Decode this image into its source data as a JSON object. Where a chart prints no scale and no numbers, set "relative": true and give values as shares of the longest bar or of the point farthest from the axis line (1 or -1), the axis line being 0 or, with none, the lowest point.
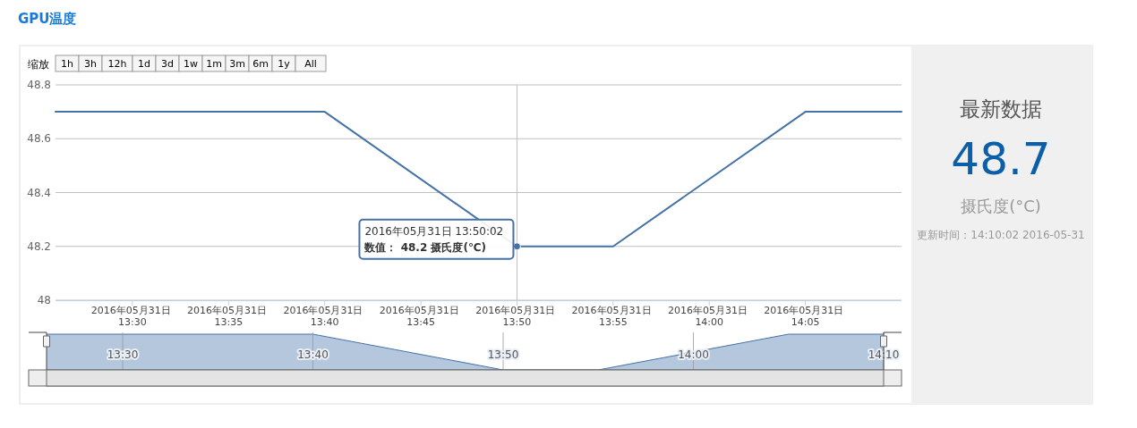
{
  "chart_data": [
    {
      "type": "line",
      "title": "GPU温度",
      "x": [
        "2016-05-31T13:26",
        "2016-05-31T13:40",
        "2016-05-31T13:50",
        "2016-05-31T13:55",
        "2016-05-31T14:05",
        "2016-05-31T14:10"
      ],
      "series": [
        {
          "color": "#4572a7",
          "values": [
            48.7,
            48.7,
            48.2,
            48.2,
            48.7,
            48.7
          ]
        }
      ],
      "xlim": [
        "2016-05-31T13:26",
        "2016-05-31T14:10"
      ],
      "xticks": [
        {
          "value": "2016-05-31T13:30",
          "label": "2016年05月31日 13:30"
        },
        {
          "value": "2016-05-31T13:35",
          "label": "2016年05月31日 13:35"
        },
        {
          "value": "2016-05-31T13:40",
          "label": "2016年05月31日 13:40"
        },
        {
          "value": "2016-05-31T13:45",
          "label": "2016年05月31日 13:45"
        },
        {
          "value": "2016-05-31T13:50",
          "label": "2016年05月31日 13:50"
        },
        {
          "value": "2016-05-31T13:55",
          "label": "2016年05月31日 13:55"
        },
        {
          "value": "2016-05-31T14:00",
          "label": "2016年05月31日 14:00"
        },
        {
          "value": "2016-05-31T14:05",
          "label": "2016年05月31日 14:05"
        }
      ],
      "ylim": [
        48,
        48.8
      ],
      "yticks": [
        48,
        48.2,
        48.4,
        48.6,
        48.8
      ],
      "grid": "y",
      "ref_lines": [
        {
          "axis": "x",
          "value": "2016-05-31T13:50",
          "color": "#c0c0c0"
        }
      ],
      "annotations": [
        "缩放",
        "1h",
        "3h",
        "12h",
        "1d",
        "3d",
        "1w",
        "1m",
        "3m",
        "6m",
        "1y",
        "All",
        {
          "text": "2016年05月31日 13:50:02\n数值： 48.2 摄氏度(℃)",
          "x": "2016-05-31T13:50",
          "y": 48.2
        }
      ]
    },
    {
      "type": "area",
      "relative": true,
      "x": [
        "2016-05-31T13:26",
        "2016-05-31T13:40",
        "2016-05-31T13:50",
        "2016-05-31T13:55",
        "2016-05-31T14:05",
        "2016-05-31T14:10"
      ],
      "series": [
        {
          "color": "#4572a7",
          "values": [
            1,
            1,
            0,
            0,
            1,
            1
          ]
        }
      ],
      "xlim": [
        "2016-05-31T13:26",
        "2016-05-31T14:10"
      ],
      "xticks": [
        {
          "value": "2016-05-31T13:30",
          "label": "13:30"
        },
        {
          "value": "2016-05-31T13:40",
          "label": "13:40"
        },
        {
          "value": "2016-05-31T13:50",
          "label": "13:50"
        },
        {
          "value": "2016-05-31T14:00",
          "label": "14:00"
        },
        {
          "value": "2016-05-31T14:10",
          "label": "14:10"
        }
      ],
      "grid": "x"
    },
    {
      "type": "other",
      "title": "最新数据",
      "annotations": [
        "48.7",
        "摄氏度(°C)",
        "更新时间：14:10:02 2016-05-31"
      ]
    }
  ]
}
